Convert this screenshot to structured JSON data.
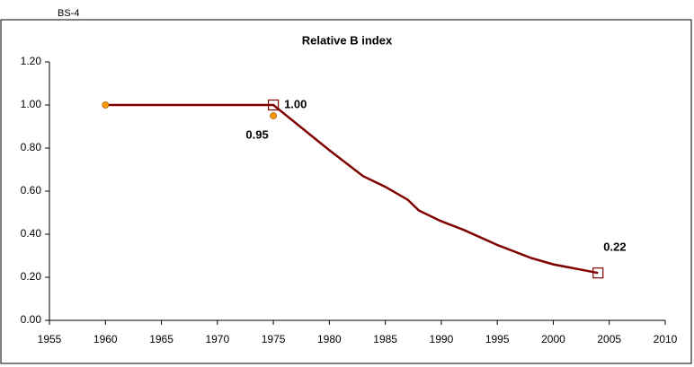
{
  "chart_data": {
    "type": "line",
    "corner_label": "BS-4",
    "title": "Relative B index",
    "xlim": [
      1955,
      2010
    ],
    "xticks": [
      1955,
      1960,
      1965,
      1970,
      1975,
      1980,
      1985,
      1990,
      1995,
      2000,
      2005,
      2010
    ],
    "ylim": [
      0,
      1.2
    ],
    "yticks": [
      {
        "value": 0,
        "label": "0.00"
      },
      {
        "value": 0.2,
        "label": "0.20"
      },
      {
        "value": 0.4,
        "label": "0.40"
      },
      {
        "value": 0.6,
        "label": "0.60"
      },
      {
        "value": 0.8,
        "label": "0.80"
      },
      {
        "value": 1.0,
        "label": "1.00"
      },
      {
        "value": 1.2,
        "label": "1.20"
      }
    ],
    "series": [
      {
        "marker": "line",
        "color": "#800000",
        "x": [
          1960,
          1975,
          1980,
          1983,
          1985,
          1987,
          1988,
          1990,
          1992,
          1995,
          1998,
          2000,
          2004
        ],
        "values": [
          1.0,
          1.0,
          0.79,
          0.67,
          0.62,
          0.56,
          0.51,
          0.46,
          0.42,
          0.35,
          0.29,
          0.26,
          0.22
        ]
      },
      {
        "marker": "circle",
        "color": "#ff9900",
        "label_color": "#000000",
        "x": [
          1960,
          1975
        ],
        "values": [
          1.0,
          0.95
        ],
        "value_labels": [
          null,
          "0.95"
        ]
      },
      {
        "marker": "square",
        "color": "#800000",
        "label_colors": [
          "#b35a1f",
          "#800000"
        ],
        "x": [
          1975,
          2004
        ],
        "values": [
          1.0,
          0.22
        ],
        "value_labels": [
          "1.00",
          "0.22"
        ]
      }
    ]
  }
}
